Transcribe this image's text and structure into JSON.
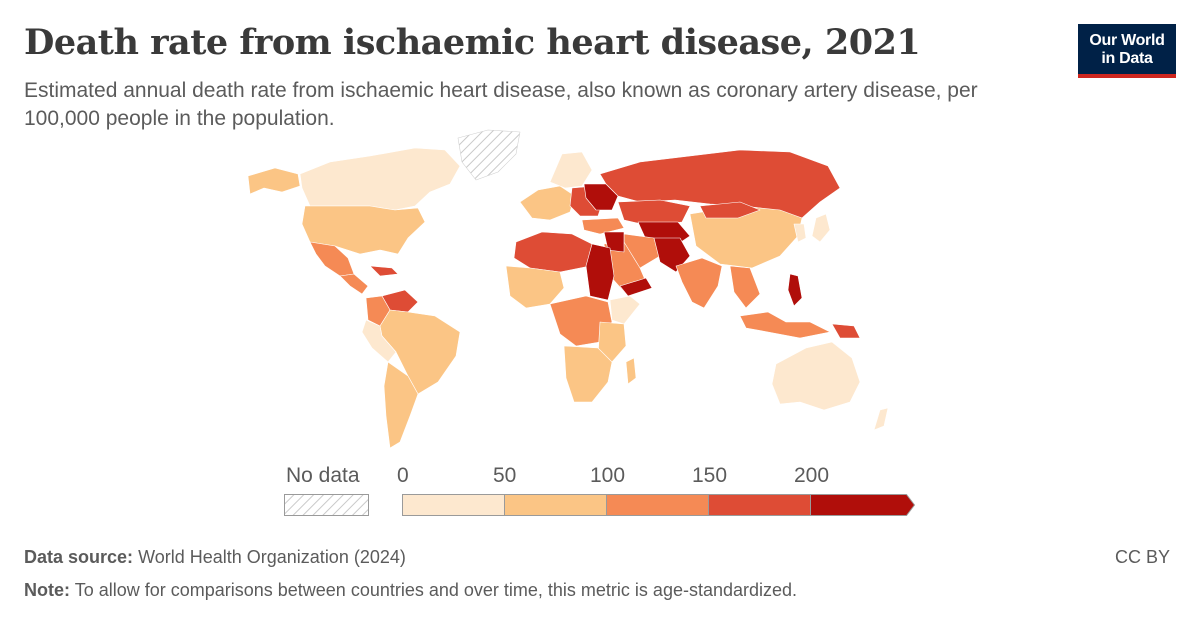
{
  "title": "Death rate from ischaemic heart disease, 2021",
  "subtitle": "Estimated annual death rate from ischaemic heart disease, also known as coronary artery disease, per 100,000 people in the population.",
  "logo": {
    "line1": "Our World",
    "line2": "in Data"
  },
  "legend": {
    "no_data_label": "No data",
    "ticks": [
      "0",
      "50",
      "100",
      "150",
      "200"
    ],
    "bins": [
      {
        "from": 0,
        "to": 50,
        "color": "#fde8cf"
      },
      {
        "from": 50,
        "to": 100,
        "color": "#fbc585"
      },
      {
        "from": 100,
        "to": 150,
        "color": "#f58a55"
      },
      {
        "from": 150,
        "to": 200,
        "color": "#de4c35"
      },
      {
        "from": 200,
        "to": null,
        "color": "#b00e0a"
      }
    ]
  },
  "footer": {
    "source_label": "Data source:",
    "source_text": "World Health Organization (2024)",
    "note_label": "Note:",
    "note_text": "To allow for comparisons between countries and over time, this metric is age-standardized.",
    "license": "CC BY"
  }
}
